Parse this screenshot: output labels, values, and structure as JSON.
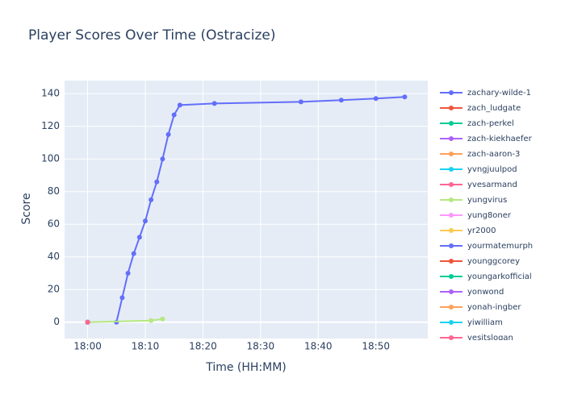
{
  "chart_data": {
    "type": "line",
    "title": "Player Scores Over Time (Ostracize)",
    "x_label": "Time (HH:MM)",
    "y_label": "Score",
    "xlim": [
      "17:56",
      "18:59"
    ],
    "xticks": [
      "18:00",
      "18:10",
      "18:20",
      "18:30",
      "18:40",
      "18:50"
    ],
    "ylim": [
      -10,
      148
    ],
    "yticks": [
      0,
      20,
      40,
      60,
      80,
      100,
      120,
      140
    ],
    "grid": true,
    "legend": "right",
    "series": [
      {
        "name": "zachary-wilde-1",
        "color": "#636efa",
        "x": [
          "18:05",
          "18:06",
          "18:07",
          "18:08",
          "18:09",
          "18:10",
          "18:11",
          "18:12",
          "18:13",
          "18:14",
          "18:15",
          "18:16",
          "18:22",
          "18:37",
          "18:44",
          "18:50",
          "18:55"
        ],
        "values": [
          0,
          15,
          30,
          42,
          52,
          62,
          75,
          86,
          100,
          115,
          127,
          133,
          134,
          135,
          136,
          137,
          138
        ]
      },
      {
        "name": "zach_ludgate",
        "color": "#EF553B",
        "x": [
          "18:00"
        ],
        "values": [
          0
        ]
      },
      {
        "name": "zach-perkel",
        "color": "#00cc96",
        "x": [
          "18:00"
        ],
        "values": [
          0
        ]
      },
      {
        "name": "zach-kiekhaefer",
        "color": "#ab63fa",
        "x": [
          "18:00"
        ],
        "values": [
          0
        ]
      },
      {
        "name": "zach-aaron-3",
        "color": "#FFA15A",
        "x": [
          "18:00"
        ],
        "values": [
          0
        ]
      },
      {
        "name": "yvngjuulpod",
        "color": "#19d3f3",
        "x": [
          "18:00"
        ],
        "values": [
          0
        ]
      },
      {
        "name": "yvesarmand",
        "color": "#FF6692",
        "x": [
          "18:00"
        ],
        "values": [
          0
        ]
      },
      {
        "name": "yungvirus",
        "color": "#B6E880",
        "x": [
          "18:00",
          "18:11",
          "18:13"
        ],
        "values": [
          0,
          1,
          2
        ]
      },
      {
        "name": "yung8oner",
        "color": "#FF97FF",
        "x": [
          "18:00"
        ],
        "values": [
          0
        ]
      },
      {
        "name": "yr2000",
        "color": "#FECB52",
        "x": [
          "18:00"
        ],
        "values": [
          0
        ]
      },
      {
        "name": "yourmatemurph",
        "color": "#636efa",
        "x": [
          "18:00"
        ],
        "values": [
          0
        ]
      },
      {
        "name": "younggcorey",
        "color": "#EF553B",
        "x": [
          "18:00"
        ],
        "values": [
          0
        ]
      },
      {
        "name": "youngarkofficial",
        "color": "#00cc96",
        "x": [
          "18:00"
        ],
        "values": [
          0
        ]
      },
      {
        "name": "yonwond",
        "color": "#ab63fa",
        "x": [
          "18:00"
        ],
        "values": [
          0
        ]
      },
      {
        "name": "yonah-ingber",
        "color": "#FFA15A",
        "x": [
          "18:00"
        ],
        "values": [
          0
        ]
      },
      {
        "name": "yiwilliam",
        "color": "#19d3f3",
        "x": [
          "18:00"
        ],
        "values": [
          0
        ]
      },
      {
        "name": "yesitslogan",
        "color": "#FF6692",
        "x": [
          "18:00"
        ],
        "values": [
          0
        ]
      }
    ]
  }
}
